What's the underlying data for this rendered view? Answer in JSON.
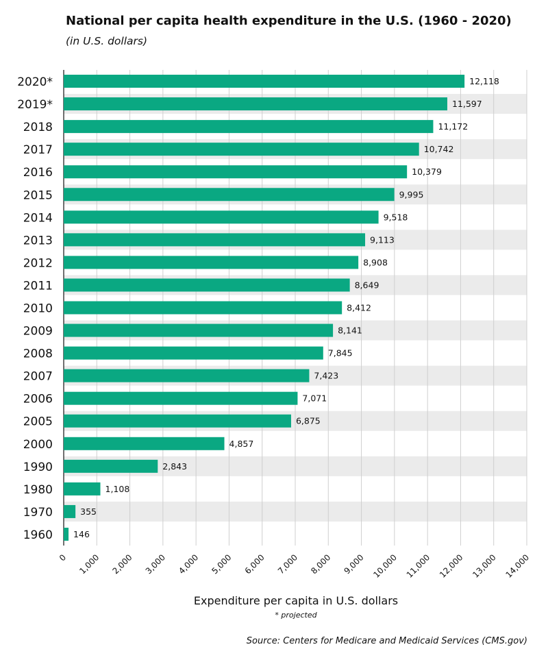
{
  "chart_data": {
    "type": "bar",
    "orientation": "horizontal",
    "title": "National per capita health expenditure in the U.S. (1960 - 2020)",
    "subtitle": "(in U.S. dollars)",
    "xlabel": "Expenditure per capita in U.S. dollars",
    "ylabel": "",
    "note": "* projected",
    "source": "Source: Centers for Medicare and Medicaid Services (CMS.gov)",
    "categories": [
      "2020*",
      "2019*",
      "2018",
      "2017",
      "2016",
      "2015",
      "2014",
      "2013",
      "2012",
      "2011",
      "2010",
      "2009",
      "2008",
      "2007",
      "2006",
      "2005",
      "2000",
      "1990",
      "1980",
      "1970",
      "1960"
    ],
    "values": [
      12118,
      11597,
      11172,
      10742,
      10379,
      9995,
      9518,
      9113,
      8908,
      8649,
      8412,
      8141,
      7845,
      7423,
      7071,
      6875,
      4857,
      2843,
      1108,
      355,
      146
    ],
    "value_labels": [
      "12,118",
      "11,597",
      "11,172",
      "10,742",
      "10,379",
      "9,995",
      "9,518",
      "9,113",
      "8,908",
      "8,649",
      "8,412",
      "8,141",
      "7,845",
      "7,423",
      "7,071",
      "6,875",
      "4,857",
      "2,843",
      "1,108",
      "355",
      "146"
    ],
    "xlim": [
      0,
      14000
    ],
    "xticks": [
      0,
      1000,
      2000,
      3000,
      4000,
      5000,
      6000,
      7000,
      8000,
      9000,
      10000,
      11000,
      12000,
      13000,
      14000
    ],
    "xtick_labels": [
      "0",
      "1,000",
      "2,000",
      "3,000",
      "4,000",
      "5,000",
      "6,000",
      "7,000",
      "8,000",
      "9,000",
      "10,000",
      "11,000",
      "12,000",
      "13,000",
      "14,000"
    ],
    "grid": "vertical",
    "row_banding": true,
    "legend": "none",
    "colors": {
      "bar": "#0aa882",
      "band": "#ebebeb",
      "grid": "#cfcfcf",
      "axis": "#111111"
    }
  }
}
